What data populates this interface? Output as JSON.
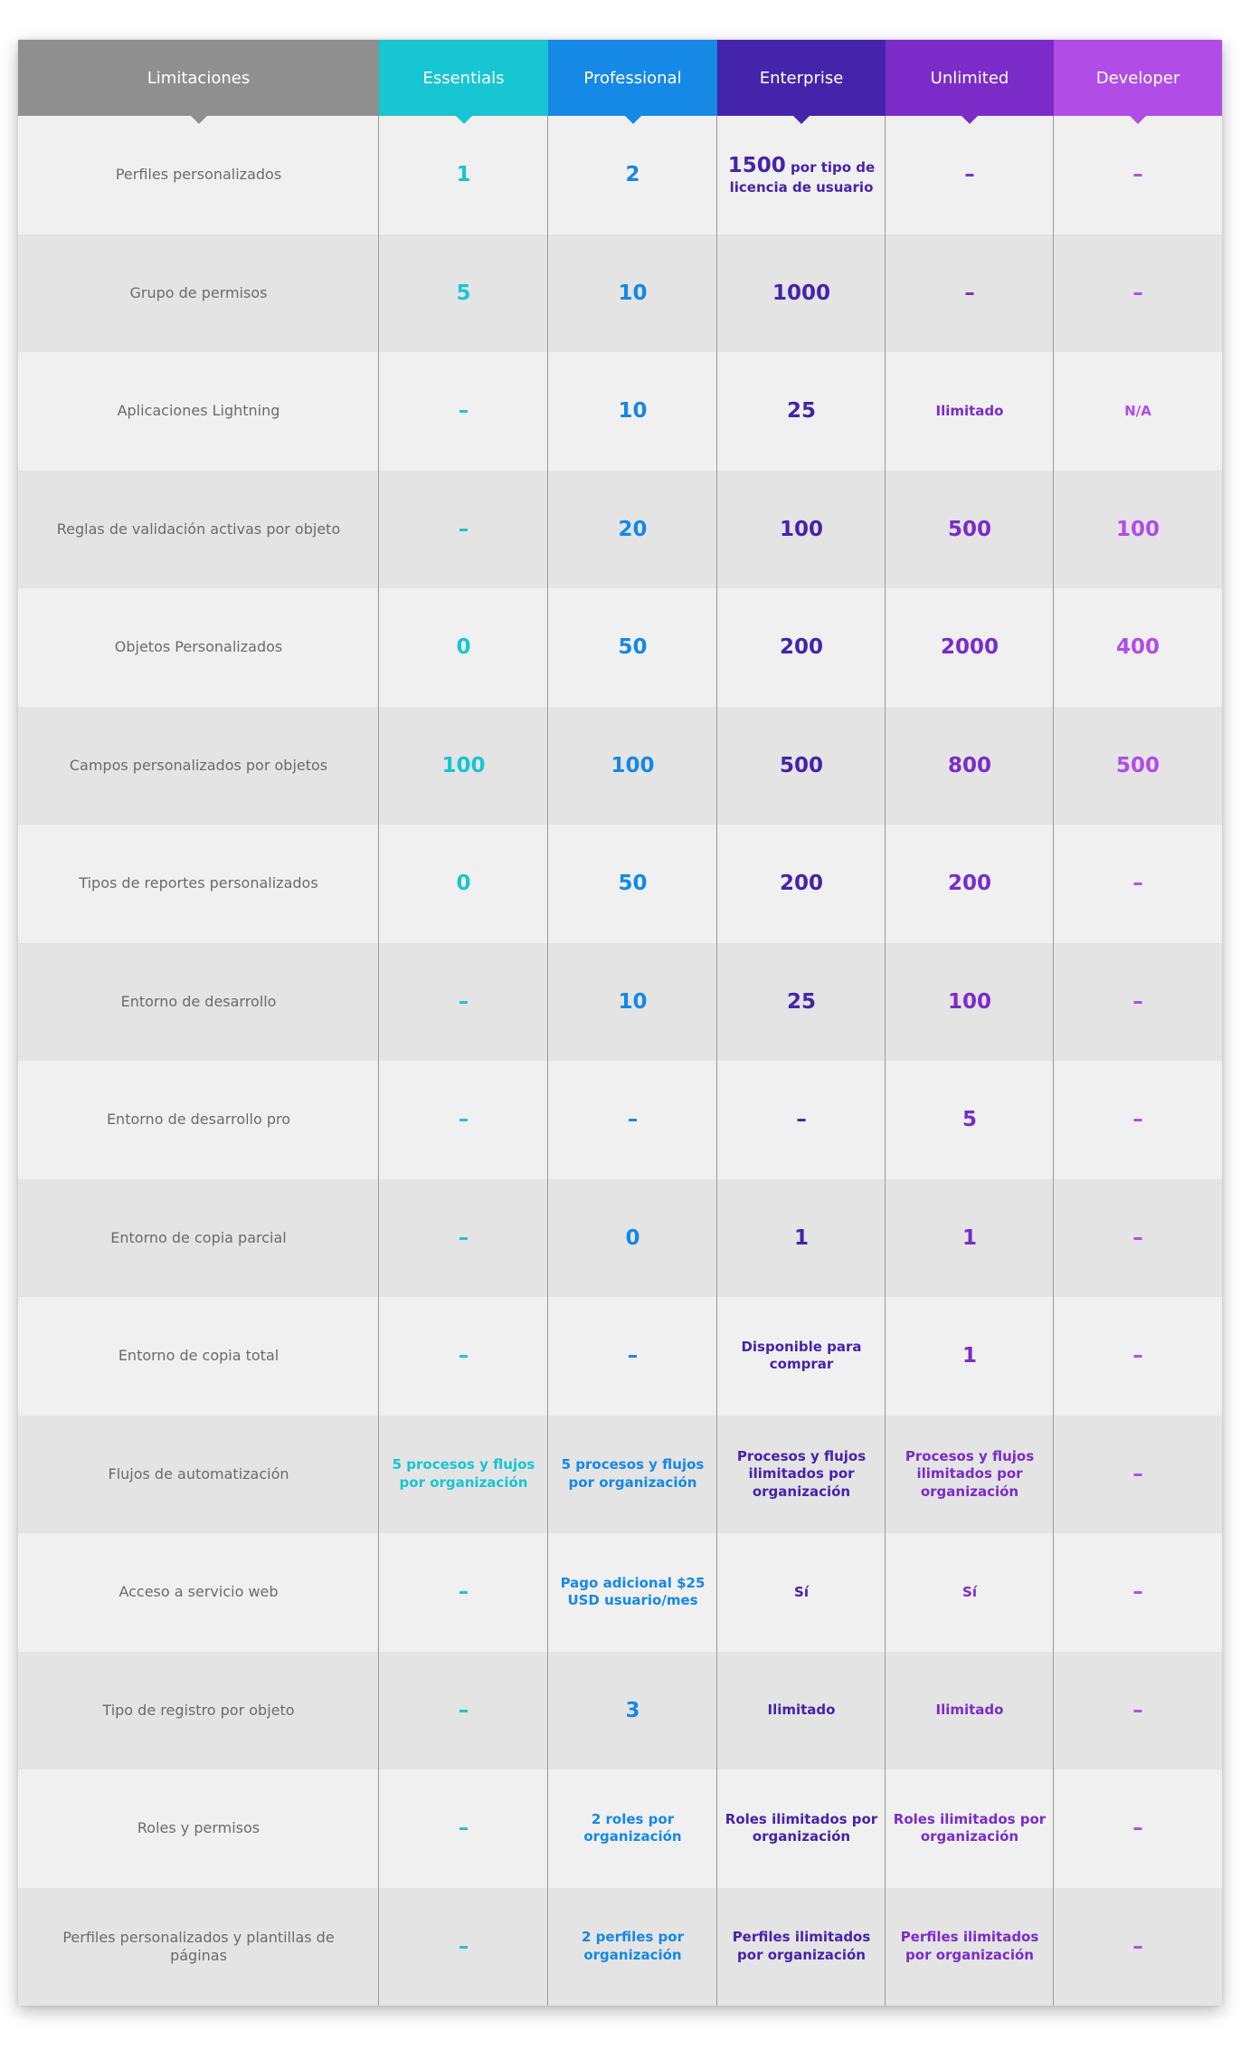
{
  "colors": {
    "label_header": "#8f8f8f",
    "essentials": "#18c5d3",
    "professional": "#1688e6",
    "enterprise": "#4424aa",
    "unlimited": "#7b2cc8",
    "developer": "#b24ce6"
  },
  "columns": [
    "Limitaciones",
    "Essentials",
    "Professional",
    "Enterprise",
    "Unlimited",
    "Developer"
  ],
  "rows": [
    {
      "label": "Perfiles personalizados",
      "essentials": "1",
      "professional": "2",
      "enterprise_num": "1500",
      "enterprise_sub": " por tipo de licencia de usuario",
      "unlimited": "–",
      "developer": "–"
    },
    {
      "label": "Grupo de permisos",
      "essentials": "5",
      "professional": "10",
      "enterprise": "1000",
      "unlimited": "–",
      "developer": "–"
    },
    {
      "label": "Aplicaciones Lightning",
      "essentials": "–",
      "professional": "10",
      "enterprise": "25",
      "unlimited": "Ilimitado",
      "developer": "N/A"
    },
    {
      "label": "Reglas de validación activas por objeto",
      "essentials": "–",
      "professional": "20",
      "enterprise": "100",
      "unlimited": "500",
      "developer": "100"
    },
    {
      "label": "Objetos Personalizados",
      "essentials": "0",
      "professional": "50",
      "enterprise": "200",
      "unlimited": "2000",
      "developer": "400"
    },
    {
      "label": "Campos personalizados por objetos",
      "essentials": "100",
      "professional": "100",
      "enterprise": "500",
      "unlimited": "800",
      "developer": "500"
    },
    {
      "label": "Tipos de reportes personalizados",
      "essentials": "0",
      "professional": "50",
      "enterprise": "200",
      "unlimited": "200",
      "developer": "–"
    },
    {
      "label": "Entorno de desarrollo",
      "essentials": "–",
      "professional": "10",
      "enterprise": "25",
      "unlimited": "100",
      "developer": "–"
    },
    {
      "label": "Entorno de desarrollo pro",
      "essentials": "–",
      "professional": "–",
      "enterprise": "–",
      "unlimited": "5",
      "developer": "–"
    },
    {
      "label": "Entorno de copia parcial",
      "essentials": "–",
      "professional": "0",
      "enterprise": "1",
      "unlimited": "1",
      "developer": "–"
    },
    {
      "label": "Entorno de copia total",
      "essentials": "–",
      "professional": "–",
      "enterprise": "Disponible para comprar",
      "unlimited": "1",
      "developer": "–"
    },
    {
      "label": "Flujos de automatización",
      "essentials": "5 procesos y flujos por organización",
      "professional": "5 procesos y flujos por organización",
      "enterprise": "Procesos y flujos ilimitados por organización",
      "unlimited": "Procesos y flujos ilimitados por organización",
      "developer": "–"
    },
    {
      "label": "Acceso a servicio web",
      "essentials": "–",
      "professional": "Pago adicional $25 USD usuario/mes",
      "enterprise": "Sí",
      "unlimited": "Sí",
      "developer": "–"
    },
    {
      "label": "Tipo de registro por objeto",
      "essentials": "–",
      "professional": "3",
      "enterprise": "Ilimitado",
      "unlimited": "Ilimitado",
      "developer": "–"
    },
    {
      "label": "Roles y permisos",
      "essentials": "–",
      "professional": "2 roles por organización",
      "enterprise": "Roles ilimitados por organización",
      "unlimited": "Roles ilimitados por organización",
      "developer": "–"
    },
    {
      "label": "Perfiles personalizados y plantillas de páginas",
      "essentials": "–",
      "professional": "2 perfiles por organización",
      "enterprise": "Perfiles ilimitados por organización",
      "unlimited": "Perfiles ilimitados por organización",
      "developer": "–"
    }
  ]
}
